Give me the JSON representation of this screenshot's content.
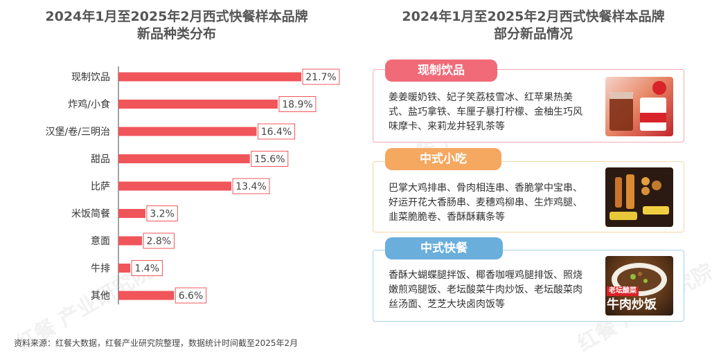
{
  "left_title_line1": "2024年1月至2025年2月西式快餐样本品牌",
  "left_title_line2": "新品种类分布",
  "right_title_line1": "2024年1月至2025年2月西式快餐样本品牌",
  "right_title_line2": "部分新品情况",
  "chart_data": {
    "type": "bar",
    "orientation": "horizontal",
    "categories": [
      "现制饮品",
      "炸鸡/小食",
      "汉堡/卷/三明治",
      "甜品",
      "比萨",
      "米饭简餐",
      "意面",
      "牛排",
      "其他"
    ],
    "values": [
      21.7,
      18.9,
      16.4,
      15.6,
      13.4,
      3.2,
      2.8,
      1.4,
      6.6
    ],
    "value_labels": [
      "21.7%",
      "18.9%",
      "16.4%",
      "15.6%",
      "13.4%",
      "3.2%",
      "2.8%",
      "1.4%",
      "6.6%"
    ],
    "unit": "%",
    "bar_color": "#f0555a",
    "xlim": [
      0,
      25
    ],
    "grid": false,
    "legend": "none"
  },
  "cards": [
    {
      "pill": "现制饮品",
      "text": "姜姜暖奶铁、妃子笑荔枝雪冰、红苹果热美式、盐巧拿铁、车厘子暴打柠檬、金柚生巧风味摩卡、来莉龙井轻乳茶等",
      "photo": "kfc-drink-cups-image"
    },
    {
      "pill": "中式小吃",
      "text": "巴掌大鸡排串、骨肉相连串、香脆掌中宝串、好运开花大香肠串、麦穗鸡柳串、生炸鸡腿、韭菜脆脆卷、香酥酥藕条等",
      "photo": "skewer-snacks-image"
    },
    {
      "pill": "中式快餐",
      "text": "香酥大蝴蝶腿拌饭、椰香咖喱鸡腿排饭、照烧嫩煎鸡腿饭、老坛酸菜牛肉炒饭、老坛酸菜肉丝汤面、芝芝大块卤肉饭等",
      "photo": "beef-fried-rice-image",
      "photo_caption": "牛肉炒饭",
      "photo_tag": "老坛酸菜"
    }
  ],
  "source": "资料来源：红餐大数据，红餐产业研究院整理，数据统计时间截至2025年2月",
  "watermark": "红餐 产业研究院",
  "colors": {
    "card1": "#f7a8b0",
    "pill1": "#f06a78",
    "card2": "#f5d6a6",
    "pill2": "#f4a860",
    "card3": "#a8d2ec",
    "pill3": "#6aaedc"
  }
}
